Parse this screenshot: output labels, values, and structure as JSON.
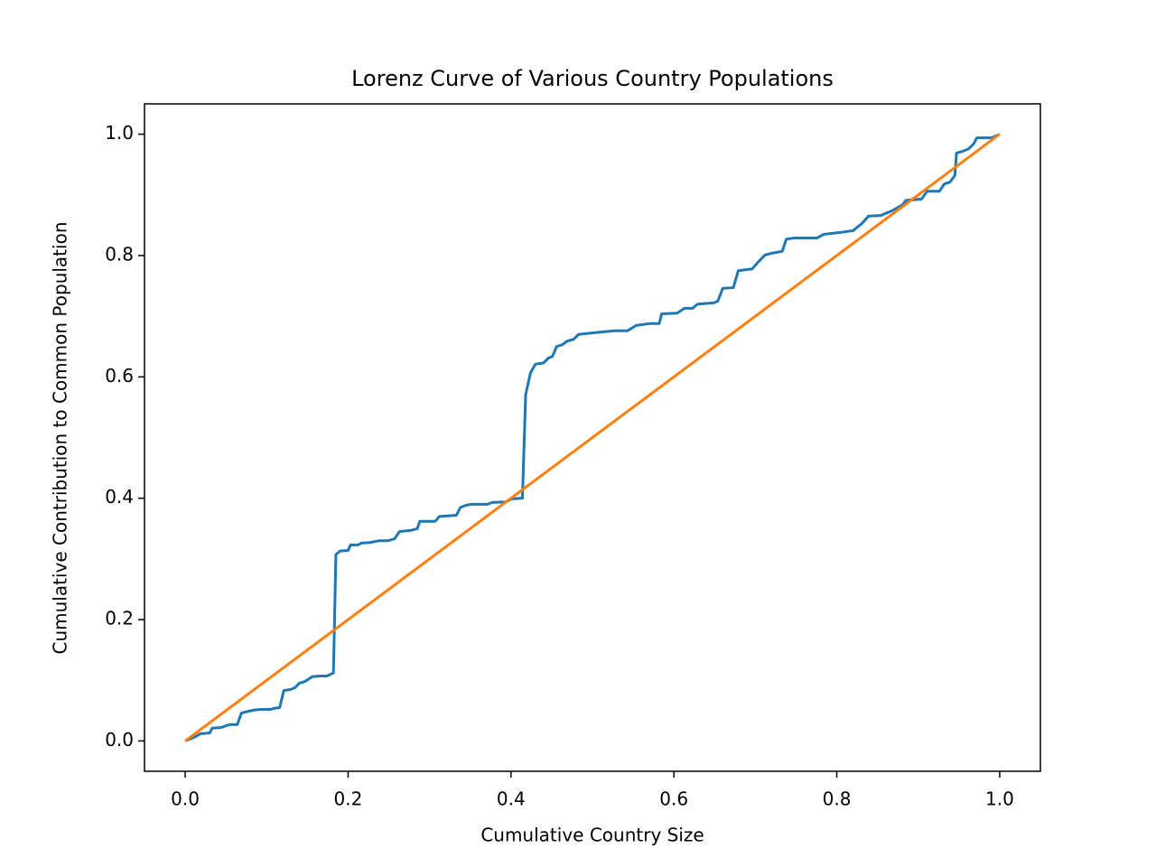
{
  "chart_data": {
    "type": "line",
    "title": "Lorenz Curve of Various Country Populations",
    "xlabel": "Cumulative Country Size",
    "ylabel": "Cumulative Contribution to Common Population",
    "xlim": [
      -0.05,
      1.05
    ],
    "ylim": [
      -0.05,
      1.05
    ],
    "xticks": [
      {
        "value": 0,
        "label": "0.0"
      },
      0.2,
      0.4,
      0.6,
      0.8,
      {
        "value": 1,
        "label": "1.0"
      }
    ],
    "yticks": [
      {
        "value": 0,
        "label": "0.0"
      },
      0.2,
      0.4,
      0.6,
      0.8,
      {
        "value": 1,
        "label": "1.0"
      }
    ],
    "grid": false,
    "series": [
      {
        "color": "#1f77b4",
        "x": [
          0,
          0.011,
          0.019,
          0.03,
          0.033,
          0.044,
          0.05,
          0.055,
          0.064,
          0.069,
          0.078,
          0.085,
          0.094,
          0.105,
          0.11,
          0.116,
          0.121,
          0.13,
          0.135,
          0.14,
          0.147,
          0.156,
          0.166,
          0.174,
          0.182,
          0.185,
          0.19,
          0.2,
          0.203,
          0.212,
          0.216,
          0.227,
          0.238,
          0.249,
          0.257,
          0.263,
          0.277,
          0.285,
          0.288,
          0.307,
          0.312,
          0.333,
          0.338,
          0.344,
          0.351,
          0.371,
          0.377,
          0.394,
          0.401,
          0.414,
          0.418,
          0.424,
          0.43,
          0.44,
          0.446,
          0.451,
          0.456,
          0.463,
          0.469,
          0.477,
          0.483,
          0.504,
          0.527,
          0.543,
          0.554,
          0.571,
          0.582,
          0.585,
          0.604,
          0.613,
          0.623,
          0.629,
          0.649,
          0.654,
          0.66,
          0.673,
          0.679,
          0.696,
          0.704,
          0.712,
          0.721,
          0.733,
          0.738,
          0.748,
          0.776,
          0.784,
          0.804,
          0.82,
          0.831,
          0.839,
          0.854,
          0.868,
          0.881,
          0.885,
          0.904,
          0.911,
          0.926,
          0.932,
          0.939,
          0.945,
          0.947,
          0.955,
          0.962,
          0.968,
          0.972,
          0.99,
          1.0
        ],
        "values": [
          0,
          0.006,
          0.012,
          0.013,
          0.021,
          0.022,
          0.025,
          0.027,
          0.027,
          0.046,
          0.049,
          0.051,
          0.052,
          0.052,
          0.054,
          0.055,
          0.083,
          0.085,
          0.088,
          0.095,
          0.098,
          0.106,
          0.107,
          0.107,
          0.112,
          0.307,
          0.313,
          0.314,
          0.323,
          0.323,
          0.326,
          0.327,
          0.33,
          0.33,
          0.333,
          0.345,
          0.347,
          0.35,
          0.362,
          0.362,
          0.37,
          0.372,
          0.385,
          0.388,
          0.39,
          0.39,
          0.393,
          0.394,
          0.399,
          0.4,
          0.571,
          0.607,
          0.621,
          0.623,
          0.631,
          0.634,
          0.65,
          0.653,
          0.659,
          0.662,
          0.67,
          0.673,
          0.676,
          0.676,
          0.685,
          0.688,
          0.688,
          0.704,
          0.705,
          0.713,
          0.713,
          0.72,
          0.722,
          0.725,
          0.746,
          0.747,
          0.775,
          0.778,
          0.79,
          0.801,
          0.804,
          0.807,
          0.827,
          0.829,
          0.829,
          0.835,
          0.838,
          0.841,
          0.853,
          0.865,
          0.866,
          0.874,
          0.884,
          0.891,
          0.893,
          0.906,
          0.906,
          0.918,
          0.921,
          0.932,
          0.969,
          0.972,
          0.976,
          0.984,
          0.994,
          0.994,
          1.0
        ]
      },
      {
        "color": "#ff7f0e",
        "x": [
          0,
          1
        ],
        "values": [
          0,
          1
        ]
      }
    ]
  }
}
